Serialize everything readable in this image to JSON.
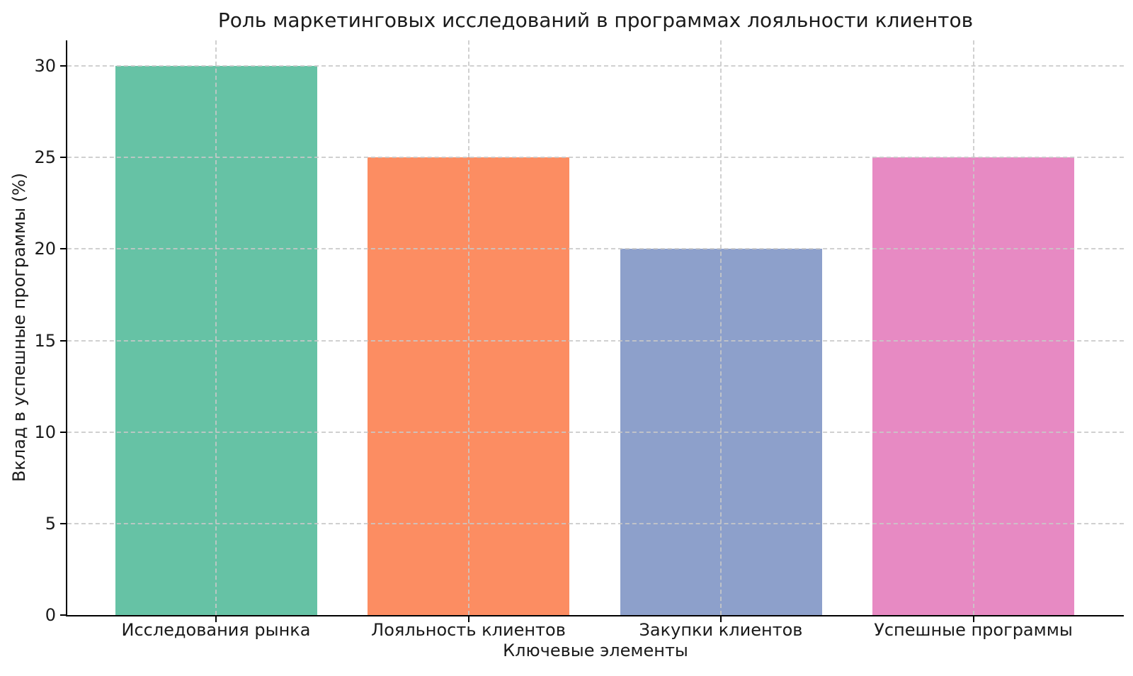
{
  "chart_data": {
    "type": "bar",
    "title": "Роль маркетинговых исследований в программах лояльности клиентов",
    "xlabel": "Ключевые элементы",
    "ylabel": "Вклад в успешные программы (%)",
    "categories": [
      "Исследования рынка",
      "Лояльность клиентов",
      "Закупки клиентов",
      "Успешные программы"
    ],
    "values": [
      30,
      25,
      20,
      25
    ],
    "bar_colors": [
      "#66c2a5",
      "#fc8d62",
      "#8da0cb",
      "#e78ac3"
    ],
    "yticks": [
      0,
      5,
      10,
      15,
      20,
      25,
      30
    ],
    "ylim": [
      0,
      31.4
    ],
    "grid": "dashed x and y gridlines drawn above bars",
    "legend": "none"
  },
  "theme": {
    "background": "#ffffff",
    "text_color": "#1a1a1a",
    "spine_color": "#000000",
    "grid_color": "#c8c8c8"
  }
}
